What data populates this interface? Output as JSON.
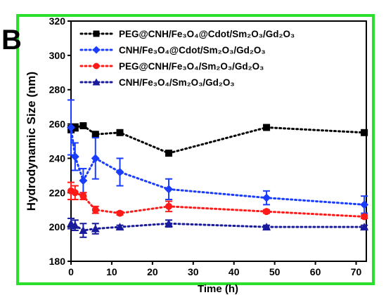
{
  "chart_data": {
    "type": "line",
    "panel_label": "B",
    "ylabel": "Hydrodynamic Size (nm)",
    "xlabel": "Time (h)",
    "xlim": [
      0,
      72.5
    ],
    "xticks": [
      0,
      10,
      20,
      30,
      40,
      50,
      60,
      70
    ],
    "ylim": [
      180,
      320
    ],
    "yticks": [
      180,
      200,
      220,
      240,
      260,
      280,
      300,
      320
    ],
    "legend": "upper left",
    "x": [
      0,
      1,
      3,
      6,
      12,
      24,
      48,
      72
    ],
    "series": [
      {
        "name": "PEG@CNH/Fe₃O₄@Cdot/Sm₂O₃/Gd₂O₃",
        "color": "#000000",
        "marker": "square",
        "values": [
          257,
          258,
          259,
          254,
          255,
          243,
          258,
          255
        ],
        "errors": [
          2,
          2,
          1,
          1,
          1,
          1,
          1,
          1
        ]
      },
      {
        "name": "CNH/Fe₃O₄@Cdot/Sm₂O₃/Gd₂O₃",
        "color": "#1a3cff",
        "marker": "diamond",
        "values": [
          258,
          241,
          227,
          240,
          232,
          222,
          217,
          213
        ],
        "errors": [
          16,
          8,
          7,
          12,
          8,
          6,
          4,
          5
        ]
      },
      {
        "name": "PEG@CNH/Fe₃O₄/Sm₂O₃/Gd₂O₃",
        "color": "#ff1a1a",
        "marker": "circle",
        "values": [
          221,
          220,
          218,
          210,
          208,
          212,
          209,
          206
        ],
        "errors": [
          5,
          4,
          2,
          2,
          1,
          3,
          1,
          1
        ]
      },
      {
        "name": "CNH/Fe₃O₄/Sm₂O₃/Gd₂O₃",
        "color": "#1a1a9c",
        "marker": "triangle",
        "values": [
          202,
          201,
          198,
          199,
          200,
          202,
          200,
          200
        ],
        "errors": [
          3,
          3,
          4,
          3,
          1,
          2,
          1,
          1
        ]
      }
    ]
  }
}
